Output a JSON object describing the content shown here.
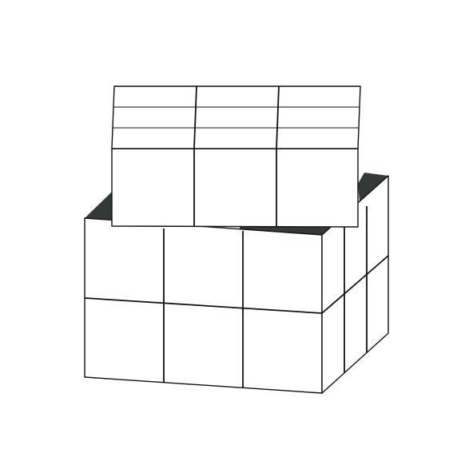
{
  "figure": {
    "subject": "cube",
    "grid": {
      "rows": 3,
      "cols": 3
    },
    "colors": {
      "background": "#ffffff",
      "face_fill": "#ffffff",
      "line": "#111111",
      "shadow": "#333a36"
    }
  }
}
